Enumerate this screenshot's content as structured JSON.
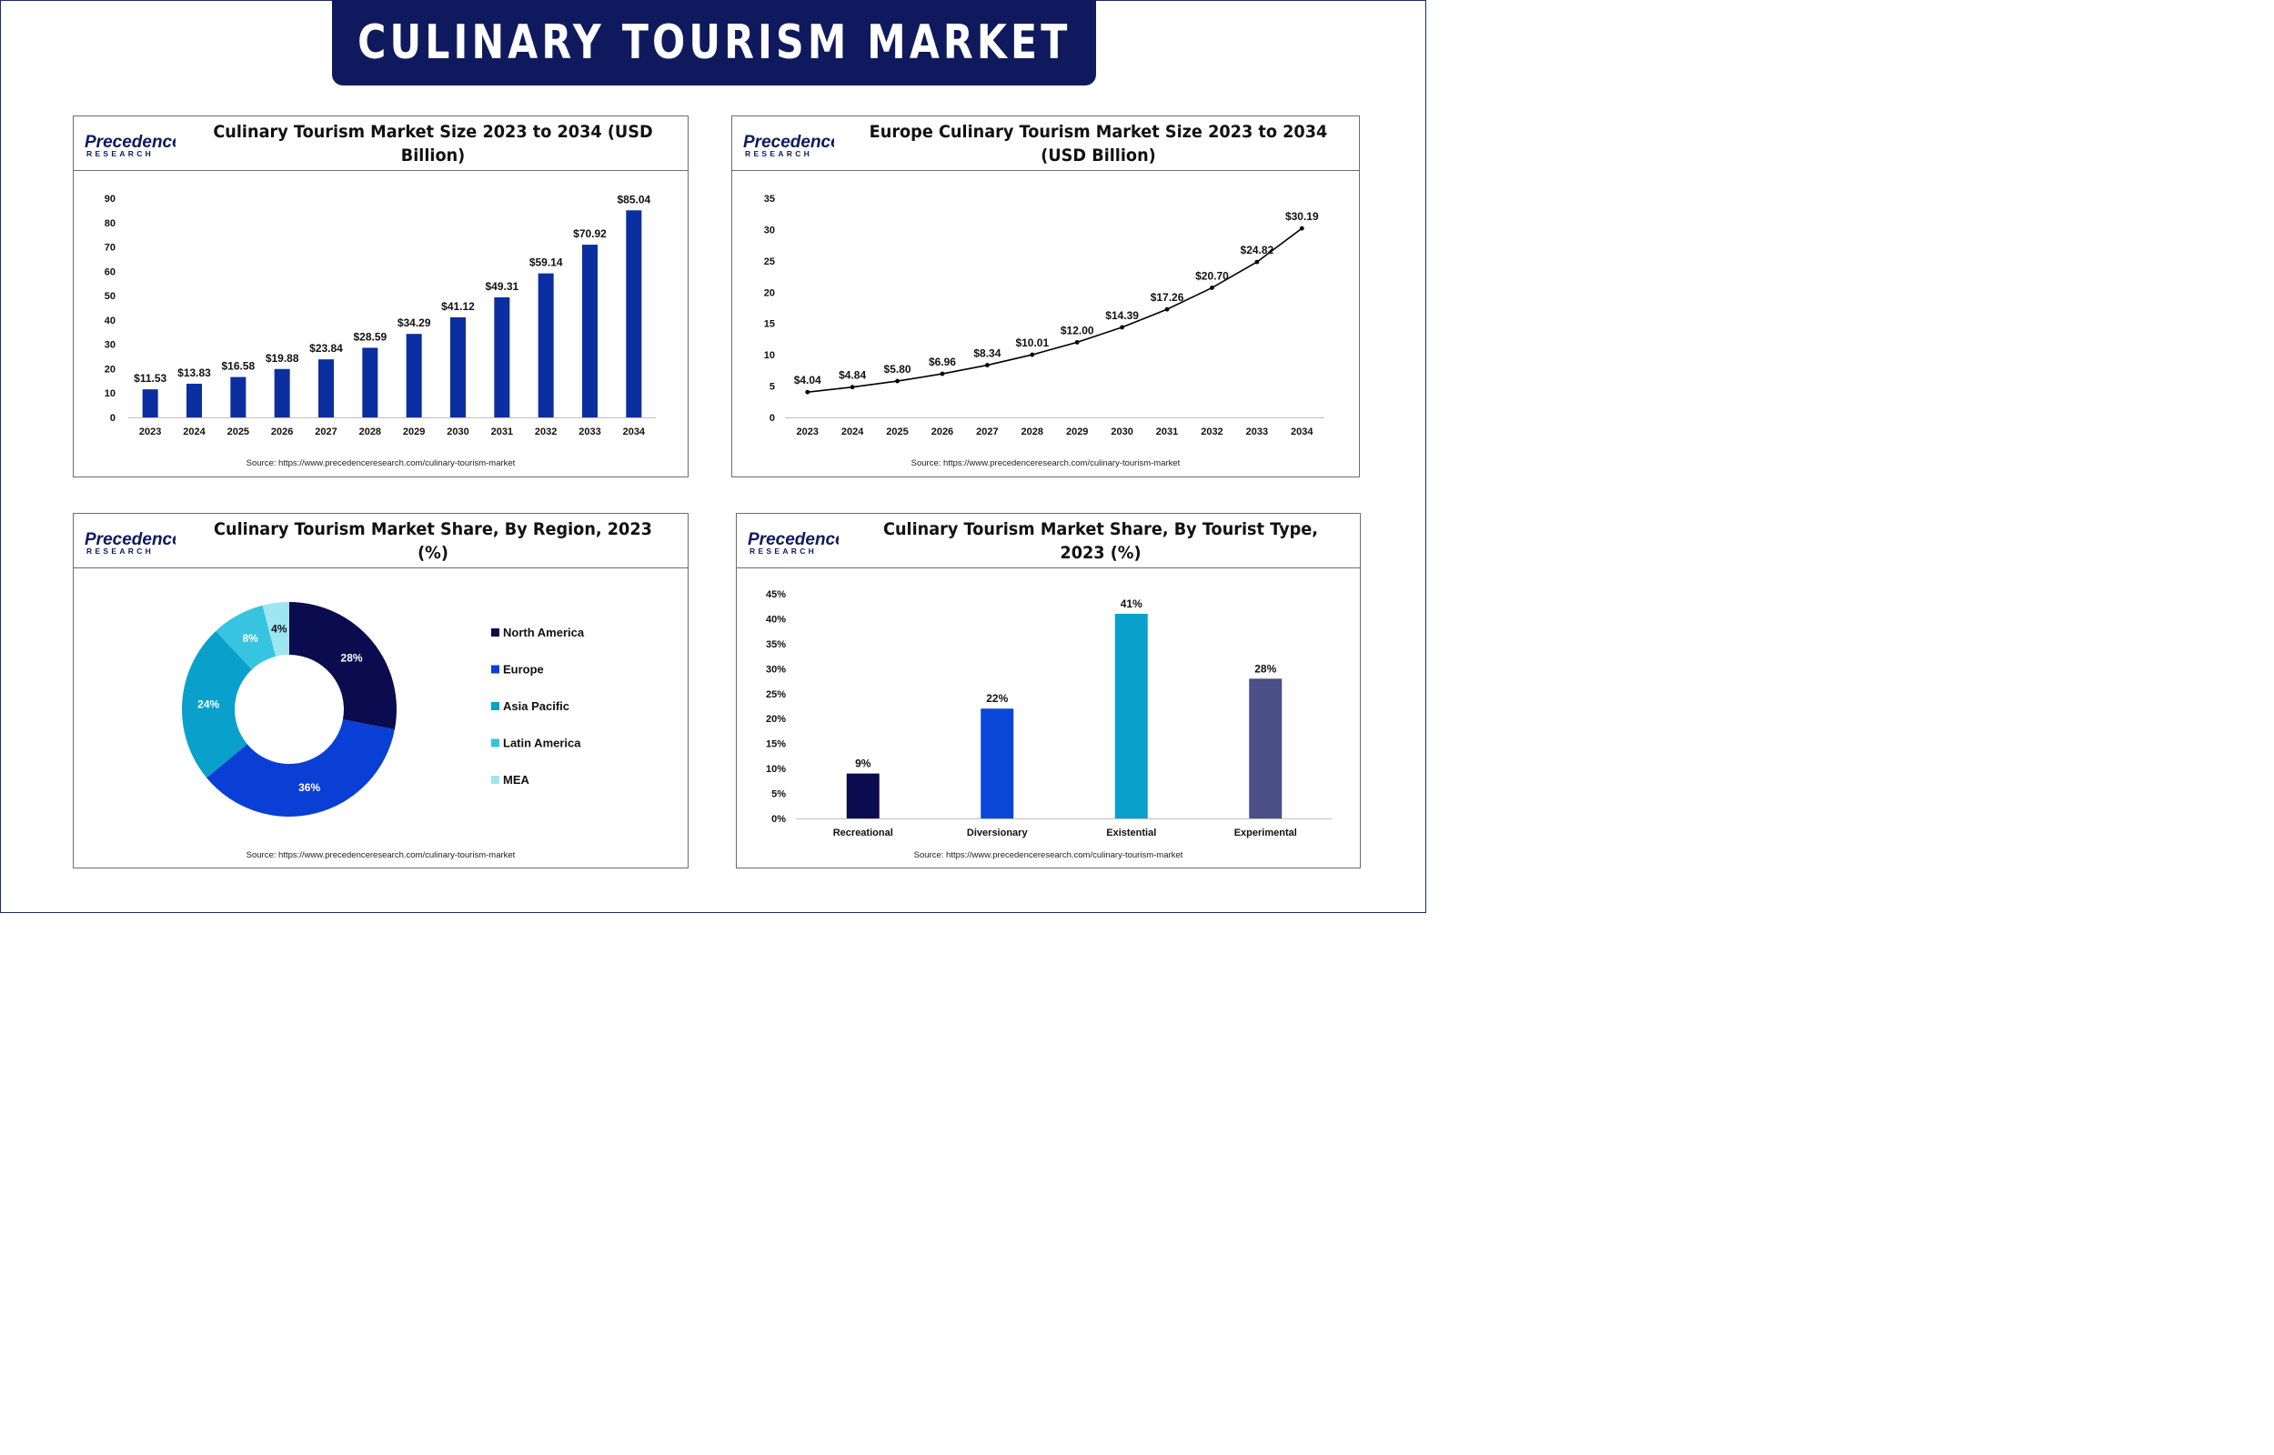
{
  "banner": {
    "title": "CULINARY TOURISM MARKET"
  },
  "logo": {
    "line1": "Precedence",
    "line2": "RESEARCH"
  },
  "colors": {
    "banner": "#0f1a5e",
    "bar_blue": "#0b2fa0",
    "line": "#000000",
    "north_america": "#0b0b4f",
    "europe": "#0a3fd6",
    "asia_pacific": "#0aa0cc",
    "latin_america": "#36c4e0",
    "mea": "#9ee6f2",
    "recreational": "#0b0b4f",
    "diversionary": "#0a47d8",
    "existential": "#0aa0cc",
    "experimental": "#4a4f86"
  },
  "source_text": "Source: https://www.precedenceresearch.com/culinary-tourism-market",
  "chart_data": [
    {
      "id": "global",
      "type": "bar",
      "title": "Culinary Tourism Market Size 2023 to 2034 (USD Billion)",
      "categories": [
        "2023",
        "2024",
        "2025",
        "2026",
        "2027",
        "2028",
        "2029",
        "2030",
        "2031",
        "2032",
        "2033",
        "2034"
      ],
      "values": [
        11.53,
        13.83,
        16.58,
        19.88,
        23.84,
        28.59,
        34.29,
        41.12,
        49.31,
        59.14,
        70.92,
        85.04
      ],
      "data_labels": [
        "$11.53",
        "$13.83",
        "$16.58",
        "$19.88",
        "$23.84",
        "$28.59",
        "$34.29",
        "$41.12",
        "$49.31",
        "$59.14",
        "$70.92",
        "$85.04"
      ],
      "yticks": [
        "0",
        "10",
        "20",
        "30",
        "40",
        "50",
        "60",
        "70",
        "80",
        "90"
      ],
      "ylim": [
        0,
        90
      ],
      "grid": false
    },
    {
      "id": "europe",
      "type": "line",
      "title": "Europe Culinary Tourism Market Size 2023 to 2034 (USD Billion)",
      "title_line1": "Europe Culinary Tourism Market Size 2023 to 2034",
      "title_line2": "(USD Billion)",
      "categories": [
        "2023",
        "2024",
        "2025",
        "2026",
        "2027",
        "2028",
        "2029",
        "2030",
        "2031",
        "2032",
        "2033",
        "2034"
      ],
      "values": [
        4.04,
        4.84,
        5.8,
        6.96,
        8.34,
        10.01,
        12.0,
        14.39,
        17.26,
        20.7,
        24.82,
        30.19
      ],
      "data_labels": [
        "$4.04",
        "$4.84",
        "$5.80",
        "$6.96",
        "$8.34",
        "$10.01",
        "$12.00",
        "$14.39",
        "$17.26",
        "$20.70",
        "$24.82",
        "$30.19"
      ],
      "yticks": [
        "0",
        "5",
        "10",
        "15",
        "20",
        "25",
        "30",
        "35"
      ],
      "ylim": [
        0,
        35
      ],
      "grid": false
    },
    {
      "id": "region",
      "type": "pie",
      "donut": true,
      "title": "Culinary Tourism Market Share, By Region, 2023 (%)",
      "categories": [
        "North America",
        "Europe",
        "Asia Pacific",
        "Latin America",
        "MEA"
      ],
      "values": [
        28,
        36,
        24,
        8,
        4
      ],
      "data_labels": [
        "28%",
        "36%",
        "24%",
        "8%",
        "4%"
      ],
      "legend": "right"
    },
    {
      "id": "tourist_type",
      "type": "bar",
      "title": "Culinary Tourism Market Share, By Tourist Type, 2023 (%)",
      "categories": [
        "Recreational",
        "Diversionary",
        "Existential",
        "Experimental"
      ],
      "values": [
        9,
        22,
        41,
        28
      ],
      "data_labels": [
        "9%",
        "22%",
        "41%",
        "28%"
      ],
      "yticks": [
        "0%",
        "5%",
        "10%",
        "15%",
        "20%",
        "25%",
        "30%",
        "35%",
        "40%",
        "45%"
      ],
      "ylim": [
        0,
        45
      ],
      "grid": false
    }
  ]
}
